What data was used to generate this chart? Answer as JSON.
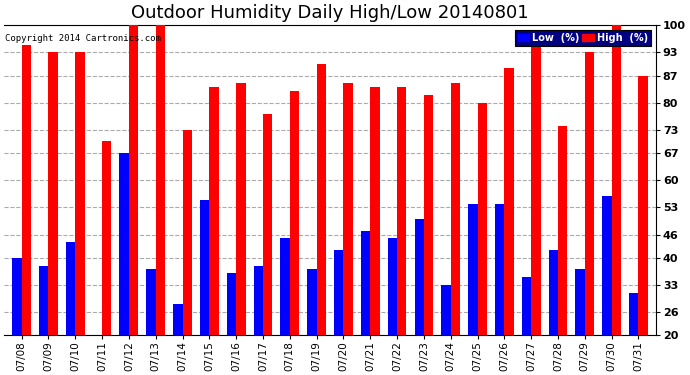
{
  "title": "Outdoor Humidity Daily High/Low 20140801",
  "copyright": "Copyright 2014 Cartronics.com",
  "dates": [
    "07/08",
    "07/09",
    "07/10",
    "07/11",
    "07/12",
    "07/13",
    "07/14",
    "07/15",
    "07/16",
    "07/17",
    "07/18",
    "07/19",
    "07/20",
    "07/21",
    "07/22",
    "07/23",
    "07/24",
    "07/25",
    "07/26",
    "07/27",
    "07/28",
    "07/29",
    "07/30",
    "07/31"
  ],
  "high": [
    95,
    93,
    93,
    70,
    100,
    100,
    73,
    84,
    85,
    77,
    83,
    90,
    85,
    84,
    84,
    82,
    85,
    80,
    89,
    96,
    74,
    93,
    100,
    87
  ],
  "low": [
    40,
    38,
    44,
    20,
    67,
    37,
    28,
    55,
    36,
    38,
    45,
    37,
    42,
    47,
    45,
    50,
    33,
    54,
    54,
    35,
    42,
    37,
    56,
    31
  ],
  "high_color": "#ff0000",
  "low_color": "#0000ff",
  "bg_color": "#ffffff",
  "plot_bg_color": "#ffffff",
  "grid_color": "#aaaaaa",
  "title_fontsize": 13,
  "yticks": [
    20,
    26,
    33,
    40,
    46,
    53,
    60,
    67,
    73,
    80,
    87,
    93,
    100
  ],
  "ylim": [
    20,
    100
  ],
  "bar_width": 0.35
}
